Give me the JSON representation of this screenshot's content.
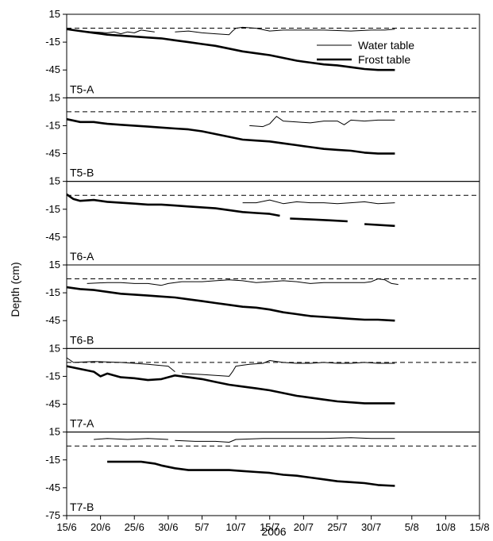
{
  "chart_data": {
    "type": "line",
    "xlabel": "2006",
    "ylabel": "Depth (cm)",
    "x_tick_labels": [
      "15/6",
      "20/6",
      "25/6",
      "30/6",
      "5/7",
      "10/7",
      "15/7",
      "20/7",
      "25/7",
      "30/7",
      "5/8",
      "10/8",
      "15/8"
    ],
    "x_ticks_day_of_year": [
      166,
      171,
      176,
      181,
      186,
      191,
      196,
      201,
      206,
      211,
      217,
      222,
      227
    ],
    "xlim_day_of_year": [
      166,
      227
    ],
    "y_tick_labels": [
      "15",
      "-15",
      "-45"
    ],
    "y_tick_values": [
      15,
      -15,
      -45
    ],
    "ylim_per_panel": [
      -75,
      15
    ],
    "bottom_axis_extra_tick_label": "-75",
    "reference_line": {
      "depth": 0,
      "style": "dashed"
    },
    "legend": {
      "placement": "top-right",
      "entries": [
        {
          "label": "Water table",
          "style": "thin"
        },
        {
          "label": "Frost table",
          "style": "thick"
        }
      ]
    },
    "panels": [
      {
        "label": "T5-A",
        "water_table_segments": [
          [
            [
              166,
              -1
            ],
            [
              168,
              -3
            ],
            [
              170,
              -4
            ],
            [
              172,
              -5
            ],
            [
              173,
              -4
            ],
            [
              174,
              -6
            ],
            [
              175,
              -4
            ],
            [
              176,
              -5
            ],
            [
              177,
              -2
            ],
            [
              178,
              -3
            ],
            [
              179,
              -4
            ]
          ],
          [
            [
              182,
              -4
            ],
            [
              184,
              -3
            ],
            [
              186,
              -5
            ],
            [
              188,
              -6
            ],
            [
              190,
              -7
            ],
            [
              190.5,
              -3
            ],
            [
              191,
              0
            ],
            [
              192,
              1
            ],
            [
              194,
              0
            ],
            [
              196,
              -3
            ],
            [
              198,
              -2
            ],
            [
              200,
              -2
            ],
            [
              204,
              -2
            ],
            [
              208,
              -3
            ],
            [
              211,
              -2
            ],
            [
              213,
              -2
            ],
            [
              214.5,
              -1
            ]
          ]
        ],
        "frost_table": [
          [
            166,
            -1
          ],
          [
            168,
            -3
          ],
          [
            170,
            -5
          ],
          [
            172,
            -7
          ],
          [
            174,
            -8
          ],
          [
            176,
            -9
          ],
          [
            178,
            -10
          ],
          [
            180,
            -11
          ],
          [
            182,
            -13
          ],
          [
            184,
            -15
          ],
          [
            186,
            -17
          ],
          [
            188,
            -19
          ],
          [
            190,
            -22
          ],
          [
            192,
            -25
          ],
          [
            194,
            -27
          ],
          [
            196,
            -29
          ],
          [
            198,
            -32
          ],
          [
            200,
            -35
          ],
          [
            202,
            -37
          ],
          [
            204,
            -39
          ],
          [
            206,
            -40
          ],
          [
            208,
            -42
          ],
          [
            210,
            -44
          ],
          [
            212,
            -45
          ],
          [
            214.5,
            -45
          ]
        ]
      },
      {
        "label": "T5-B",
        "water_table_segments": [
          [
            [
              193,
              -15
            ],
            [
              195,
              -16
            ],
            [
              196,
              -13
            ],
            [
              197,
              -5
            ],
            [
              198,
              -10
            ],
            [
              200,
              -11
            ],
            [
              202,
              -12
            ],
            [
              204,
              -10
            ],
            [
              206,
              -10
            ],
            [
              207,
              -14
            ],
            [
              208,
              -9
            ],
            [
              210,
              -10
            ],
            [
              212,
              -9
            ],
            [
              214.5,
              -9
            ]
          ]
        ],
        "frost_table": [
          [
            166,
            -8
          ],
          [
            168,
            -11
          ],
          [
            170,
            -11
          ],
          [
            172,
            -13
          ],
          [
            174,
            -14
          ],
          [
            176,
            -15
          ],
          [
            178,
            -16
          ],
          [
            180,
            -17
          ],
          [
            182,
            -18
          ],
          [
            184,
            -19
          ],
          [
            186,
            -21
          ],
          [
            188,
            -24
          ],
          [
            190,
            -27
          ],
          [
            192,
            -30
          ],
          [
            194,
            -31
          ],
          [
            196,
            -32
          ],
          [
            198,
            -34
          ],
          [
            200,
            -36
          ],
          [
            202,
            -38
          ],
          [
            204,
            -40
          ],
          [
            206,
            -41
          ],
          [
            208,
            -42
          ],
          [
            210,
            -44
          ],
          [
            212,
            -45
          ],
          [
            214.5,
            -45
          ]
        ]
      },
      {
        "label": "T6-A",
        "water_table_segments": [
          [
            [
              192,
              -8
            ],
            [
              194,
              -8
            ],
            [
              196,
              -5
            ],
            [
              198,
              -9
            ],
            [
              200,
              -7
            ],
            [
              202,
              -8
            ],
            [
              204,
              -8
            ],
            [
              206,
              -9
            ],
            [
              208,
              -8
            ],
            [
              210,
              -7
            ],
            [
              212,
              -9
            ],
            [
              214.5,
              -8
            ]
          ]
        ],
        "frost_table_segments": [
          [
            [
              166,
              1
            ],
            [
              167,
              -4
            ],
            [
              168,
              -6
            ],
            [
              170,
              -5
            ],
            [
              172,
              -7
            ],
            [
              174,
              -8
            ],
            [
              176,
              -9
            ],
            [
              178,
              -10
            ],
            [
              180,
              -10
            ],
            [
              182,
              -11
            ],
            [
              184,
              -12
            ],
            [
              186,
              -13
            ],
            [
              188,
              -14
            ],
            [
              190,
              -16
            ],
            [
              192,
              -18
            ],
            [
              194,
              -19
            ],
            [
              196,
              -20
            ],
            [
              197.5,
              -22
            ]
          ],
          [
            [
              199,
              -25
            ],
            [
              202,
              -26
            ],
            [
              205,
              -27
            ],
            [
              207.5,
              -28
            ]
          ],
          [
            [
              210,
              -31
            ],
            [
              214.5,
              -33
            ]
          ]
        ]
      },
      {
        "label": "T6-B",
        "water_table_segments": [
          [
            [
              169,
              -5
            ],
            [
              172,
              -4
            ],
            [
              174,
              -4
            ],
            [
              176,
              -5
            ],
            [
              178,
              -5
            ],
            [
              180,
              -7
            ],
            [
              181,
              -5
            ],
            [
              183,
              -3
            ],
            [
              186,
              -3
            ],
            [
              188,
              -2
            ],
            [
              190,
              -1
            ],
            [
              192,
              -2
            ],
            [
              194,
              -4
            ],
            [
              196,
              -3
            ],
            [
              198,
              -2
            ],
            [
              200,
              -3
            ],
            [
              202,
              -5
            ],
            [
              204,
              -4
            ],
            [
              206,
              -4
            ],
            [
              208,
              -4
            ],
            [
              210,
              -4
            ],
            [
              211,
              -3
            ],
            [
              212,
              0
            ],
            [
              213,
              -1
            ],
            [
              214,
              -5
            ],
            [
              215,
              -6
            ]
          ]
        ],
        "frost_table": [
          [
            166,
            -9
          ],
          [
            168,
            -11
          ],
          [
            170,
            -12
          ],
          [
            172,
            -14
          ],
          [
            174,
            -16
          ],
          [
            176,
            -17
          ],
          [
            178,
            -18
          ],
          [
            180,
            -19
          ],
          [
            182,
            -20
          ],
          [
            184,
            -22
          ],
          [
            186,
            -24
          ],
          [
            188,
            -26
          ],
          [
            190,
            -28
          ],
          [
            192,
            -30
          ],
          [
            194,
            -31
          ],
          [
            196,
            -33
          ],
          [
            198,
            -36
          ],
          [
            200,
            -38
          ],
          [
            202,
            -40
          ],
          [
            204,
            -41
          ],
          [
            206,
            -42
          ],
          [
            208,
            -43
          ],
          [
            210,
            -44
          ],
          [
            212,
            -44
          ],
          [
            214.5,
            -45
          ]
        ]
      },
      {
        "label": "T7-A",
        "water_table_segments": [
          [
            [
              166,
              5
            ],
            [
              167,
              0
            ],
            [
              170,
              1
            ],
            [
              174,
              0
            ],
            [
              176,
              -1
            ],
            [
              178,
              -2
            ],
            [
              181,
              -4
            ],
            [
              182,
              -10
            ]
          ],
          [
            [
              183,
              -12
            ],
            [
              186,
              -13
            ],
            [
              188,
              -14
            ],
            [
              190,
              -15
            ],
            [
              190.5,
              -10
            ],
            [
              191,
              -4
            ],
            [
              192,
              -3
            ],
            [
              193,
              -2
            ],
            [
              195,
              -1
            ],
            [
              196,
              2
            ],
            [
              198,
              0
            ],
            [
              200,
              -1
            ],
            [
              202,
              -1
            ],
            [
              204,
              0
            ],
            [
              206,
              -1
            ],
            [
              208,
              -1
            ],
            [
              210,
              0
            ],
            [
              212,
              -1
            ],
            [
              214.5,
              -1
            ]
          ]
        ],
        "frost_table": [
          [
            166,
            -4
          ],
          [
            168,
            -7
          ],
          [
            170,
            -10
          ],
          [
            171,
            -15
          ],
          [
            172,
            -12
          ],
          [
            174,
            -16
          ],
          [
            176,
            -17
          ],
          [
            178,
            -19
          ],
          [
            180,
            -18
          ],
          [
            182,
            -14
          ],
          [
            184,
            -16
          ],
          [
            186,
            -18
          ],
          [
            188,
            -21
          ],
          [
            190,
            -24
          ],
          [
            192,
            -26
          ],
          [
            194,
            -28
          ],
          [
            196,
            -30
          ],
          [
            198,
            -33
          ],
          [
            200,
            -36
          ],
          [
            202,
            -38
          ],
          [
            204,
            -40
          ],
          [
            206,
            -42
          ],
          [
            208,
            -43
          ],
          [
            210,
            -44
          ],
          [
            212,
            -44
          ],
          [
            214.5,
            -44
          ]
        ]
      },
      {
        "label": "T7-B",
        "water_table_segments": [
          [
            [
              170,
              7
            ],
            [
              172,
              8
            ],
            [
              175,
              7
            ],
            [
              178,
              8
            ],
            [
              181,
              7
            ]
          ],
          [
            [
              182,
              6
            ],
            [
              185,
              5
            ],
            [
              188,
              5
            ],
            [
              190,
              4
            ],
            [
              191,
              7
            ],
            [
              195,
              8
            ],
            [
              200,
              8
            ],
            [
              204,
              8
            ],
            [
              208,
              9
            ],
            [
              211,
              8
            ],
            [
              214.5,
              8
            ]
          ]
        ],
        "frost_table": [
          [
            172,
            -17
          ],
          [
            175,
            -17
          ],
          [
            177,
            -17
          ],
          [
            179,
            -19
          ],
          [
            180,
            -21
          ],
          [
            182,
            -24
          ],
          [
            184,
            -26
          ],
          [
            186,
            -26
          ],
          [
            188,
            -26
          ],
          [
            190,
            -26
          ],
          [
            192,
            -27
          ],
          [
            194,
            -28
          ],
          [
            196,
            -29
          ],
          [
            198,
            -31
          ],
          [
            200,
            -32
          ],
          [
            202,
            -34
          ],
          [
            204,
            -36
          ],
          [
            206,
            -38
          ],
          [
            208,
            -39
          ],
          [
            210,
            -40
          ],
          [
            212,
            -42
          ],
          [
            214.5,
            -43
          ]
        ]
      }
    ]
  }
}
